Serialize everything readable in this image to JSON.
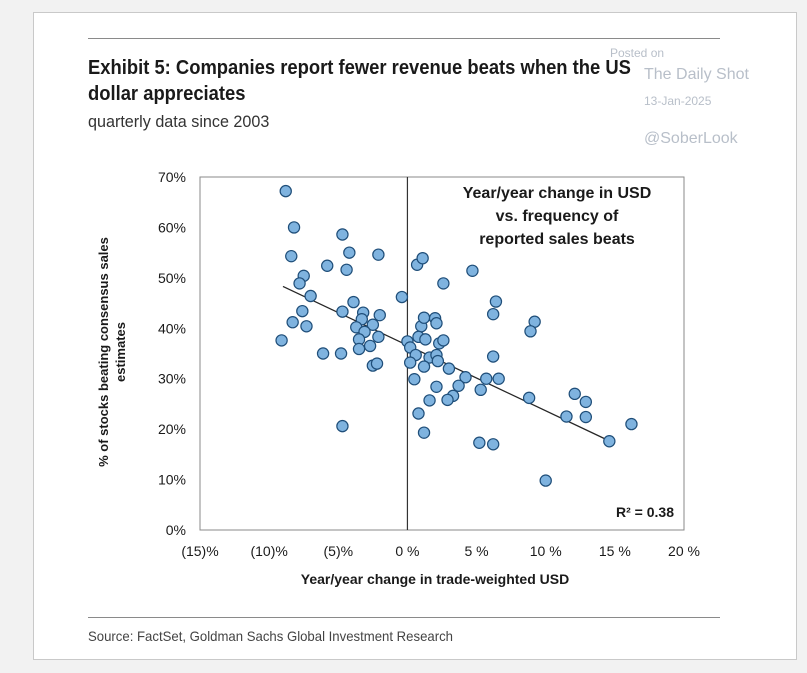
{
  "header": {
    "title": "Exhibit 5: Companies report fewer revenue beats when the US dollar appreciates",
    "subtitle": "quarterly data since 2003"
  },
  "watermark": {
    "posted": "Posted on",
    "site": "The Daily Shot",
    "date": "13-Jan-2025",
    "handle": "@SoberLook"
  },
  "footer": {
    "source": "Source: FactSet, Goldman Sachs Global Investment Research"
  },
  "chart_data": {
    "type": "scatter",
    "annotation": [
      "Year/year change in USD",
      "vs. frequency of",
      "reported sales beats"
    ],
    "r2_label": "R² = 0.38",
    "xlabel": "Year/year change in trade-weighted USD",
    "ylabel": [
      "% of stocks beating consensus sales",
      "estimates"
    ],
    "xlim": [
      -15,
      20
    ],
    "ylim": [
      0,
      70
    ],
    "x_ticks": [
      -15,
      -10,
      -5,
      0,
      5,
      10,
      15,
      20
    ],
    "x_tick_labels": [
      "(15)%",
      "(10)%",
      "(5)%",
      "0 %",
      "5 %",
      "10 %",
      "15 %",
      "20 %"
    ],
    "y_ticks": [
      0,
      10,
      20,
      30,
      40,
      50,
      60,
      70
    ],
    "y_tick_labels": [
      "0%",
      "10%",
      "20%",
      "30%",
      "40%",
      "50%",
      "60%",
      "70%"
    ],
    "trendline": {
      "x": [
        -9.0,
        14.5
      ],
      "y": [
        48.3,
        17.8
      ]
    },
    "colors": {
      "point_fill": "#7fb3df",
      "point_stroke": "#1f4e79",
      "trendline": "#262626",
      "zero_line": "#333333"
    },
    "points": [
      {
        "x": -8.8,
        "y": 67.2
      },
      {
        "x": -8.2,
        "y": 60.0
      },
      {
        "x": -8.4,
        "y": 54.3
      },
      {
        "x": -7.5,
        "y": 50.4
      },
      {
        "x": -7.8,
        "y": 48.9
      },
      {
        "x": -7.0,
        "y": 46.4
      },
      {
        "x": -7.6,
        "y": 43.4
      },
      {
        "x": -8.3,
        "y": 41.2
      },
      {
        "x": -7.3,
        "y": 40.4
      },
      {
        "x": -9.1,
        "y": 37.6
      },
      {
        "x": -5.8,
        "y": 52.4
      },
      {
        "x": -4.7,
        "y": 58.6
      },
      {
        "x": -4.2,
        "y": 55.0
      },
      {
        "x": -4.4,
        "y": 51.6
      },
      {
        "x": -2.1,
        "y": 54.6
      },
      {
        "x": -3.9,
        "y": 45.2
      },
      {
        "x": -4.7,
        "y": 43.3
      },
      {
        "x": -3.2,
        "y": 43.1
      },
      {
        "x": -3.3,
        "y": 41.8
      },
      {
        "x": -2.0,
        "y": 42.6
      },
      {
        "x": -3.7,
        "y": 40.2
      },
      {
        "x": -2.5,
        "y": 40.7
      },
      {
        "x": -3.1,
        "y": 39.3
      },
      {
        "x": -2.1,
        "y": 38.3
      },
      {
        "x": -3.5,
        "y": 37.8
      },
      {
        "x": -2.7,
        "y": 36.5
      },
      {
        "x": -3.5,
        "y": 35.9
      },
      {
        "x": -4.8,
        "y": 35.0
      },
      {
        "x": -6.1,
        "y": 35.0
      },
      {
        "x": -2.5,
        "y": 32.6
      },
      {
        "x": -2.2,
        "y": 33.0
      },
      {
        "x": -4.7,
        "y": 20.6
      },
      {
        "x": -0.4,
        "y": 46.2
      },
      {
        "x": 0.0,
        "y": 37.4
      },
      {
        "x": 0.7,
        "y": 52.6
      },
      {
        "x": 1.1,
        "y": 53.9
      },
      {
        "x": 2.6,
        "y": 48.9
      },
      {
        "x": 1.0,
        "y": 40.4
      },
      {
        "x": 1.2,
        "y": 42.1
      },
      {
        "x": 2.0,
        "y": 42.0
      },
      {
        "x": 2.1,
        "y": 41.0
      },
      {
        "x": 0.8,
        "y": 38.3
      },
      {
        "x": 1.3,
        "y": 37.8
      },
      {
        "x": 2.3,
        "y": 37.0
      },
      {
        "x": 2.6,
        "y": 37.6
      },
      {
        "x": 0.2,
        "y": 36.2
      },
      {
        "x": 0.6,
        "y": 34.7
      },
      {
        "x": 1.6,
        "y": 34.2
      },
      {
        "x": 2.1,
        "y": 34.7
      },
      {
        "x": 2.2,
        "y": 33.5
      },
      {
        "x": 0.2,
        "y": 33.2
      },
      {
        "x": 1.2,
        "y": 32.4
      },
      {
        "x": 3.0,
        "y": 32.0
      },
      {
        "x": 0.5,
        "y": 29.9
      },
      {
        "x": 4.2,
        "y": 30.3
      },
      {
        "x": 3.7,
        "y": 28.6
      },
      {
        "x": 2.1,
        "y": 28.4
      },
      {
        "x": 3.3,
        "y": 26.6
      },
      {
        "x": 2.9,
        "y": 25.8
      },
      {
        "x": 1.6,
        "y": 25.7
      },
      {
        "x": 0.8,
        "y": 23.1
      },
      {
        "x": 1.2,
        "y": 19.3
      },
      {
        "x": 4.7,
        "y": 51.4
      },
      {
        "x": 6.4,
        "y": 45.3
      },
      {
        "x": 6.2,
        "y": 42.8
      },
      {
        "x": 6.2,
        "y": 34.4
      },
      {
        "x": 5.7,
        "y": 30.0
      },
      {
        "x": 6.6,
        "y": 30.0
      },
      {
        "x": 5.3,
        "y": 27.8
      },
      {
        "x": 5.2,
        "y": 17.3
      },
      {
        "x": 6.2,
        "y": 17.0
      },
      {
        "x": 9.2,
        "y": 41.3
      },
      {
        "x": 8.9,
        "y": 39.4
      },
      {
        "x": 8.8,
        "y": 26.2
      },
      {
        "x": 10.0,
        "y": 9.8
      },
      {
        "x": 11.5,
        "y": 22.5
      },
      {
        "x": 12.1,
        "y": 27.0
      },
      {
        "x": 12.9,
        "y": 25.4
      },
      {
        "x": 12.9,
        "y": 22.4
      },
      {
        "x": 14.6,
        "y": 17.6
      },
      {
        "x": 16.2,
        "y": 21.0
      }
    ]
  }
}
